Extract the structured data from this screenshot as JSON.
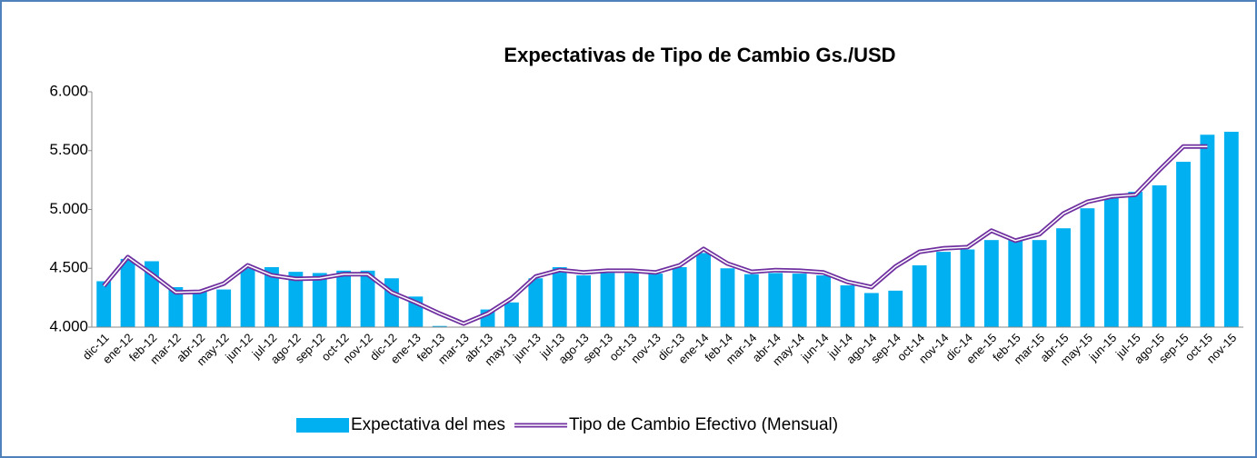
{
  "chart_data": {
    "type": "bar-line",
    "title": "Expectativas de Tipo de Cambio Gs./USD",
    "categories": [
      "dic-11",
      "ene-12",
      "feb-12",
      "mar-12",
      "abr-12",
      "may-12",
      "jun-12",
      "jul-12",
      "ago-12",
      "sep-12",
      "oct-12",
      "nov-12",
      "dic-12",
      "ene-13",
      "feb-13",
      "mar-13",
      "abr-13",
      "may-13",
      "jun-13",
      "jul-13",
      "ago-13",
      "sep-13",
      "oct-13",
      "nov-13",
      "dic-13",
      "ene-14",
      "feb-14",
      "mar-14",
      "abr-14",
      "may-14",
      "jun-14",
      "jul-14",
      "ago-14",
      "sep-14",
      "oct-14",
      "nov-14",
      "dic-14",
      "ene-15",
      "feb-15",
      "mar-15",
      "abr-15",
      "may-15",
      "jun-15",
      "jul-15",
      "ago-15",
      "sep-15",
      "oct-15",
      "nov-15"
    ],
    "series": [
      {
        "name": "Expectativa del mes",
        "type": "bar",
        "color": "#00b0f0",
        "values": [
          4390,
          4580,
          4560,
          4340,
          4310,
          4320,
          4500,
          4510,
          4470,
          4460,
          4480,
          4480,
          4415,
          4260,
          4010,
          4000,
          4150,
          4210,
          4415,
          4510,
          4440,
          4460,
          4460,
          4455,
          4510,
          4630,
          4500,
          4450,
          4460,
          4455,
          4440,
          4355,
          4290,
          4310,
          4525,
          4640,
          4660,
          4740,
          4740,
          4740,
          4840,
          5010,
          5105,
          5150,
          5205,
          5405,
          5635,
          5660
        ]
      },
      {
        "name": "Tipo de Cambio Efectivo (Mensual)",
        "type": "line",
        "color": "#7030a0",
        "values": [
          4350,
          4595,
          4450,
          4295,
          4300,
          4370,
          4525,
          4440,
          4410,
          4415,
          4450,
          4450,
          4295,
          4210,
          4115,
          4030,
          4115,
          4245,
          4430,
          4485,
          4465,
          4480,
          4480,
          4465,
          4525,
          4665,
          4540,
          4470,
          4485,
          4480,
          4465,
          4385,
          4340,
          4515,
          4640,
          4670,
          4680,
          4820,
          4735,
          4790,
          4965,
          5065,
          5110,
          5125,
          5335,
          5535,
          5535,
          null
        ]
      }
    ],
    "ylim": [
      4000,
      6000
    ],
    "yticks": [
      {
        "value": 4000,
        "label": "4.000"
      },
      {
        "value": 4500,
        "label": "4.500"
      },
      {
        "value": 5000,
        "label": "5.000"
      },
      {
        "value": 5500,
        "label": "5.500"
      },
      {
        "value": 6000,
        "label": "6.000"
      }
    ],
    "legend": "bottom"
  }
}
